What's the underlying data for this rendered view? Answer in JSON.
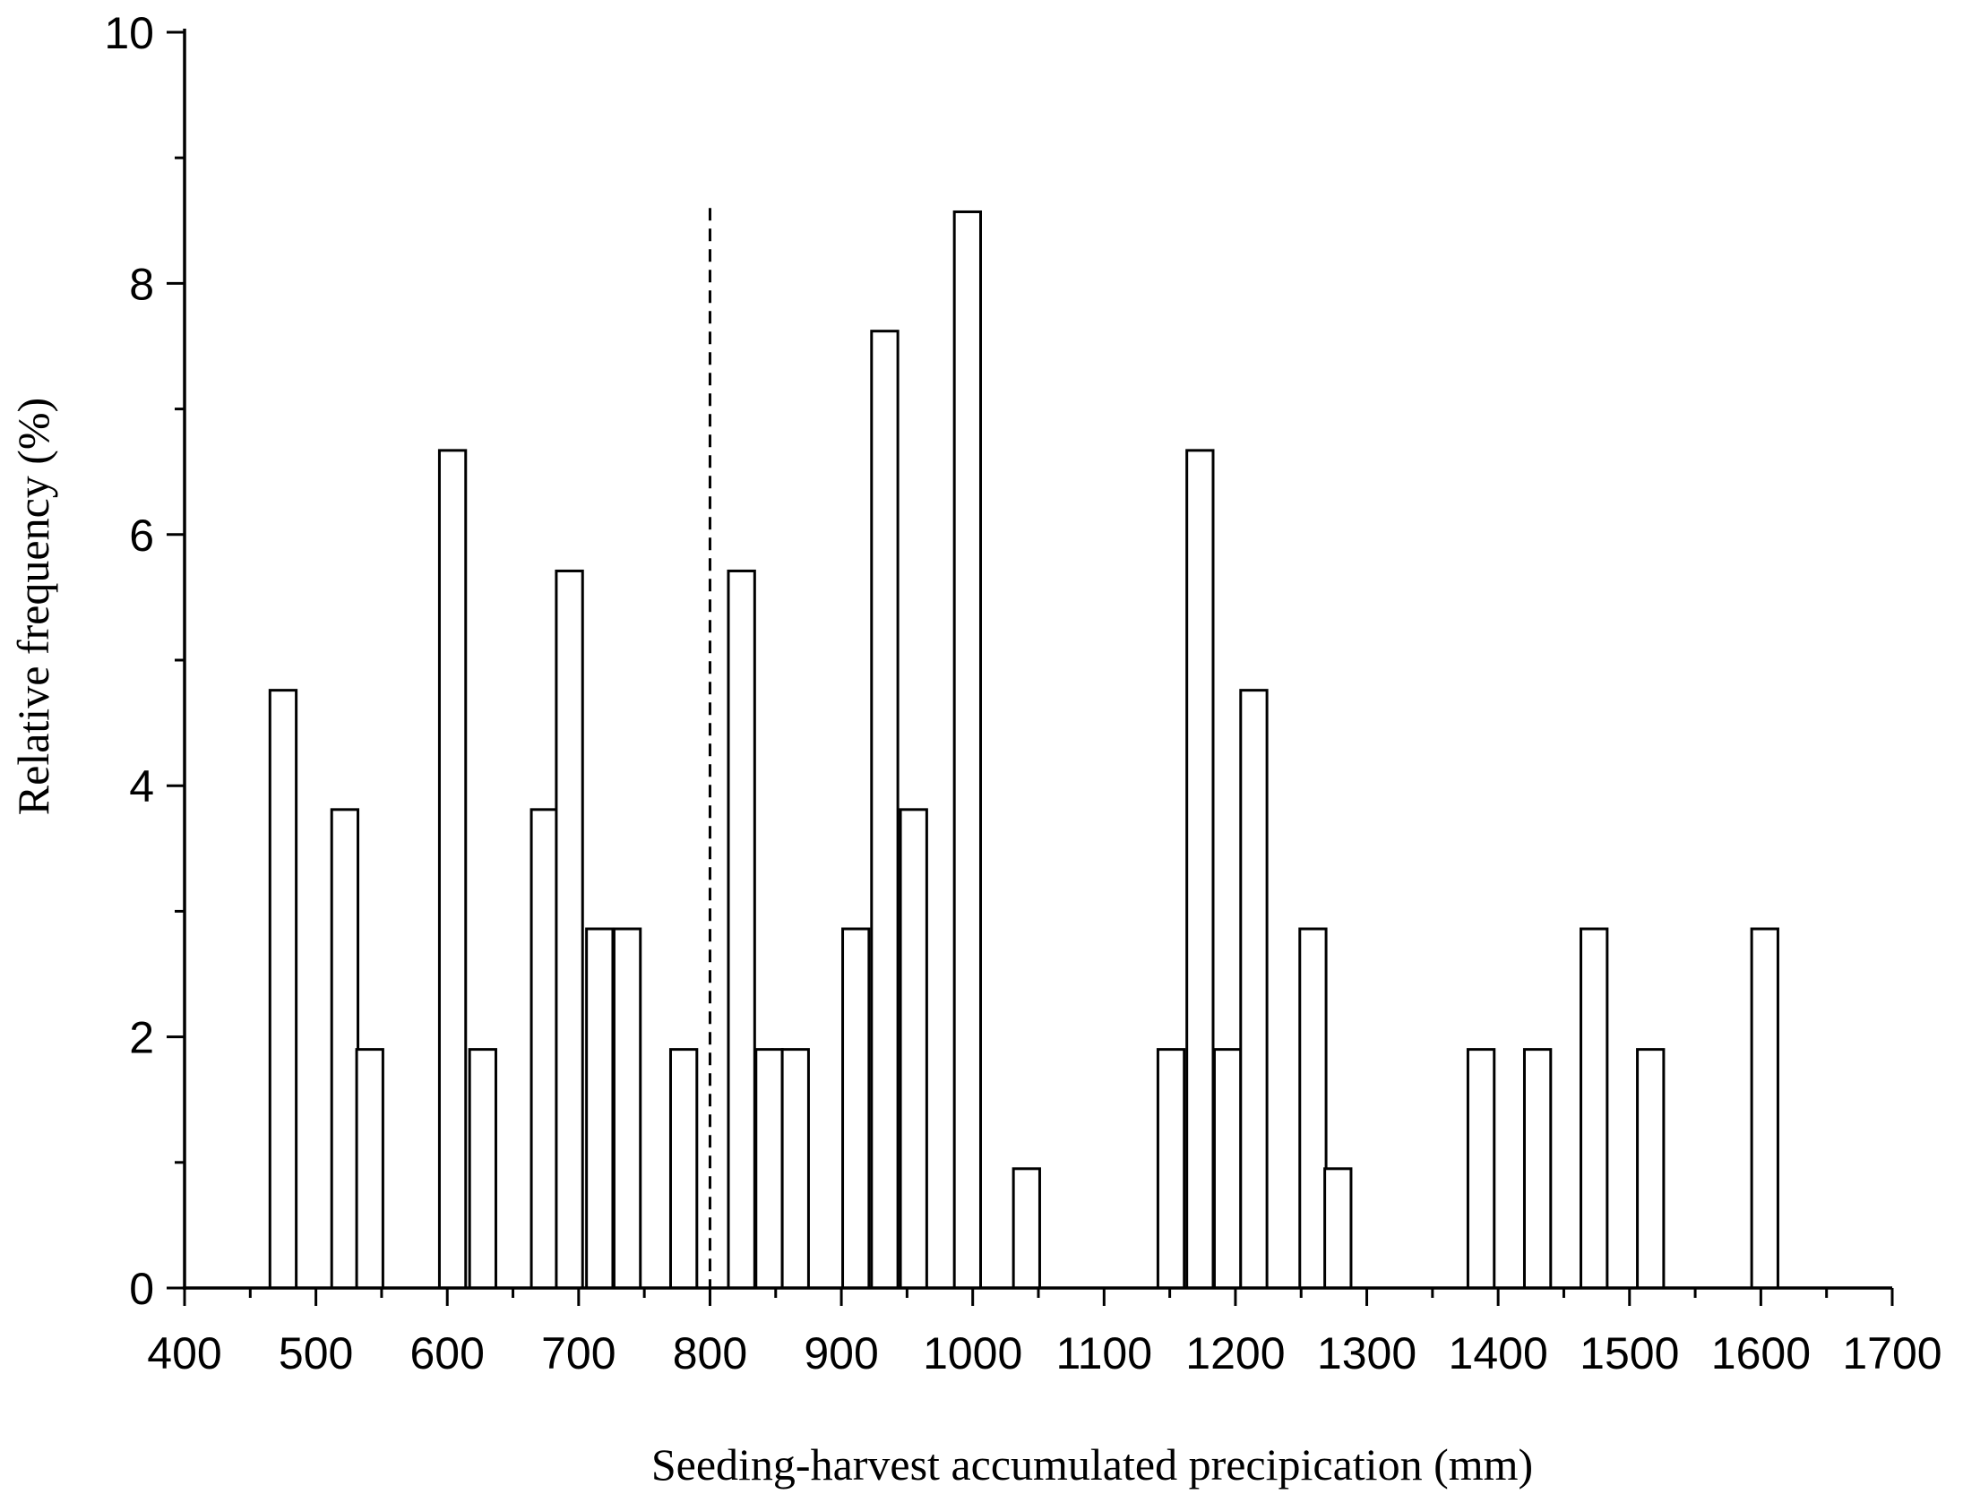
{
  "chart_data": {
    "type": "bar",
    "title": "",
    "xlabel": "Seeding-harvest accumulated precipication (mm)",
    "ylabel": "Relative frequency (%)",
    "xlim": [
      400,
      1700
    ],
    "ylim": [
      0,
      10
    ],
    "x_ticks": [
      400,
      500,
      600,
      700,
      800,
      900,
      1000,
      1100,
      1200,
      1300,
      1400,
      1500,
      1600,
      1700
    ],
    "y_ticks": [
      0,
      2,
      4,
      6,
      8,
      10
    ],
    "bar_width": 20,
    "reference_line": {
      "x": 800,
      "y_top": 8.6,
      "style": "dashed"
    },
    "grid": false,
    "legend": false,
    "bars": [
      {
        "x": 475,
        "value": 4.76
      },
      {
        "x": 522,
        "value": 3.81
      },
      {
        "x": 541,
        "value": 1.9
      },
      {
        "x": 604,
        "value": 6.67
      },
      {
        "x": 627,
        "value": 1.9
      },
      {
        "x": 674,
        "value": 3.81
      },
      {
        "x": 693,
        "value": 5.71
      },
      {
        "x": 716,
        "value": 2.86
      },
      {
        "x": 737,
        "value": 2.86
      },
      {
        "x": 780,
        "value": 1.9
      },
      {
        "x": 824,
        "value": 5.71
      },
      {
        "x": 845,
        "value": 1.9
      },
      {
        "x": 865,
        "value": 1.9
      },
      {
        "x": 911,
        "value": 2.86
      },
      {
        "x": 933,
        "value": 7.62
      },
      {
        "x": 955,
        "value": 3.81
      },
      {
        "x": 996,
        "value": 8.57
      },
      {
        "x": 1041,
        "value": 0.95
      },
      {
        "x": 1151,
        "value": 1.9
      },
      {
        "x": 1173,
        "value": 6.67
      },
      {
        "x": 1194,
        "value": 1.9
      },
      {
        "x": 1214,
        "value": 4.76
      },
      {
        "x": 1259,
        "value": 2.86
      },
      {
        "x": 1278,
        "value": 0.95
      },
      {
        "x": 1387,
        "value": 1.9
      },
      {
        "x": 1430,
        "value": 1.9
      },
      {
        "x": 1473,
        "value": 2.86
      },
      {
        "x": 1516,
        "value": 1.9
      },
      {
        "x": 1603,
        "value": 2.86
      }
    ]
  }
}
